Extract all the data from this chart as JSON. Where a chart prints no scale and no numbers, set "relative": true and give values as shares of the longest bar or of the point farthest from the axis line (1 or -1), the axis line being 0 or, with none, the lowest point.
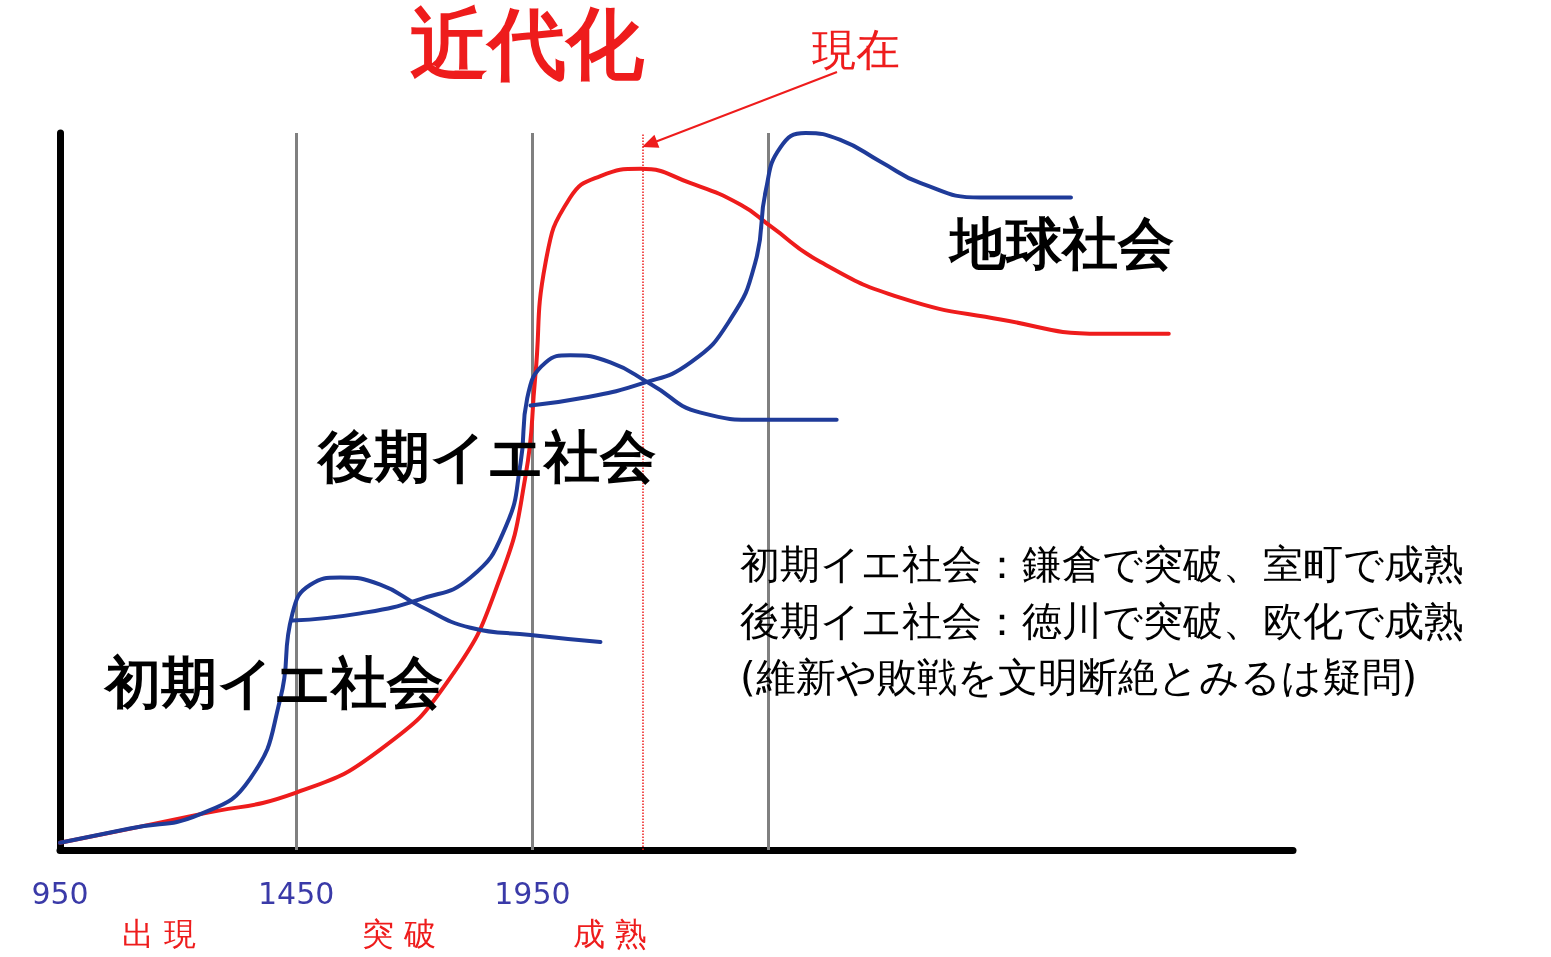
{
  "chart_data": {
    "type": "line",
    "title": "近代化",
    "relative": true,
    "xlim": [
      950,
      3560
    ],
    "xticks": [
      950,
      1450,
      1950
    ],
    "tick_labels": "x",
    "grid": false,
    "marker": "none",
    "line_style": "solid",
    "series": [
      {
        "color": "#ee1c1c",
        "x": [
          950,
          1247,
          1450,
          1628,
          1776,
          1882,
          1935,
          1956,
          1978,
          2030,
          2094,
          2179,
          2285,
          2391,
          2454,
          2560,
          2730,
          2941,
          3153,
          3297
        ],
        "values": [
          0.01,
          0.05,
          0.08,
          0.14,
          0.24,
          0.38,
          0.52,
          0.66,
          0.82,
          0.91,
          0.94,
          0.95,
          0.93,
          0.9,
          0.87,
          0.82,
          0.77,
          0.74,
          0.72,
          0.72
        ]
      },
      {
        "color": "#1f3b99",
        "x": [
          950,
          1098,
          1247,
          1353,
          1416,
          1442,
          1480,
          1543,
          1628,
          1713,
          1819,
          1946,
          2094
        ],
        "values": [
          0.01,
          0.03,
          0.05,
          0.1,
          0.21,
          0.33,
          0.37,
          0.38,
          0.37,
          0.34,
          0.31,
          0.3,
          0.29
        ]
      },
      {
        "color": "#1f3b99",
        "x": [
          1442,
          1586,
          1713,
          1819,
          1893,
          1925,
          1939,
          1978,
          2030,
          2115,
          2200,
          2306,
          2433,
          2594
        ],
        "values": [
          0.32,
          0.33,
          0.35,
          0.38,
          0.45,
          0.54,
          0.63,
          0.68,
          0.69,
          0.68,
          0.65,
          0.61,
          0.6,
          0.6
        ]
      },
      {
        "color": "#1f3b99",
        "x": [
          1946,
          2052,
          2179,
          2285,
          2369,
          2422,
          2444,
          2475,
          2528,
          2603,
          2687,
          2772,
          2899,
          3090
        ],
        "values": [
          0.62,
          0.63,
          0.65,
          0.68,
          0.74,
          0.82,
          0.92,
          0.98,
          1,
          0.99,
          0.96,
          0.93,
          0.91,
          0.91
        ]
      }
    ],
    "ref_lines": [
      {
        "axis": "x",
        "value": 1450,
        "color": "#808080",
        "line_style": "solid"
      },
      {
        "axis": "x",
        "value": 1950,
        "color": "#808080",
        "line_style": "solid"
      },
      {
        "axis": "x",
        "value": 2450,
        "color": "#808080",
        "line_style": "solid"
      },
      {
        "axis": "x",
        "value": 2183,
        "label": "現在",
        "color": "#ee1c1c",
        "line_style": "dotted"
      }
    ],
    "annotations": [
      "地球社会",
      "後期イエ社会",
      "初期イエ社会",
      "初期イエ社会：鎌倉で突破、室町で成熟",
      "後期イエ社会：徳川で突破、欧化で成熟",
      "(維新や敗戦を文明断絶とみるは疑問)",
      "出 現",
      "突 破",
      "成 熟"
    ]
  }
}
